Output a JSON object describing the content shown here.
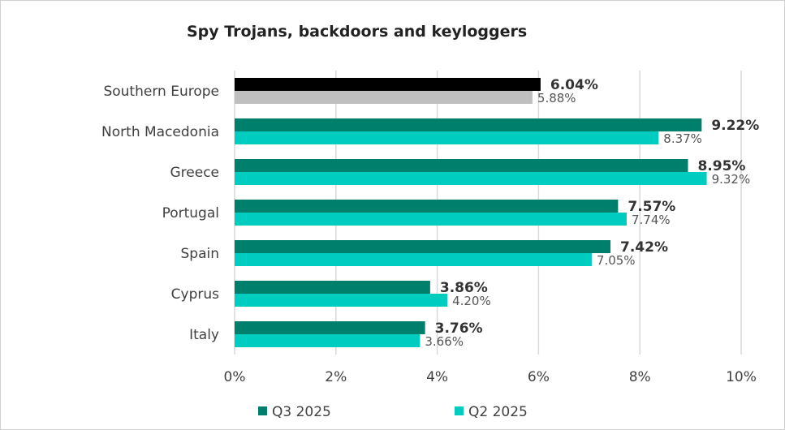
{
  "chart_data": {
    "type": "bar",
    "orientation": "horizontal",
    "title": "Spy Trojans, backdoors and keyloggers",
    "xlabel": "",
    "ylabel": "",
    "xlim": [
      0,
      10
    ],
    "x_ticks": [
      "0%",
      "2%",
      "4%",
      "6%",
      "8%",
      "10%"
    ],
    "grid": true,
    "legend_position": "bottom",
    "categories": [
      "Southern Europe",
      "North Macedonia",
      "Greece",
      "Portugal",
      "Spain",
      "Cyprus",
      "Italy"
    ],
    "series": [
      {
        "name": "Q3 2025",
        "color": "#00806C",
        "highlight_color": "#000000",
        "values": [
          6.04,
          9.22,
          8.95,
          7.57,
          7.42,
          3.86,
          3.76
        ],
        "labels": [
          "6.04%",
          "9.22%",
          "8.95%",
          "7.57%",
          "7.42%",
          "3.86%",
          "3.76%"
        ]
      },
      {
        "name": "Q2 2025",
        "color": "#00CDC0",
        "highlight_color": "#BFBFBF",
        "values": [
          5.88,
          8.37,
          9.32,
          7.74,
          7.05,
          4.2,
          3.66
        ],
        "labels": [
          "5.88%",
          "8.37%",
          "9.32%",
          "7.74%",
          "7.05%",
          "4.20%",
          "3.66%"
        ]
      }
    ]
  }
}
